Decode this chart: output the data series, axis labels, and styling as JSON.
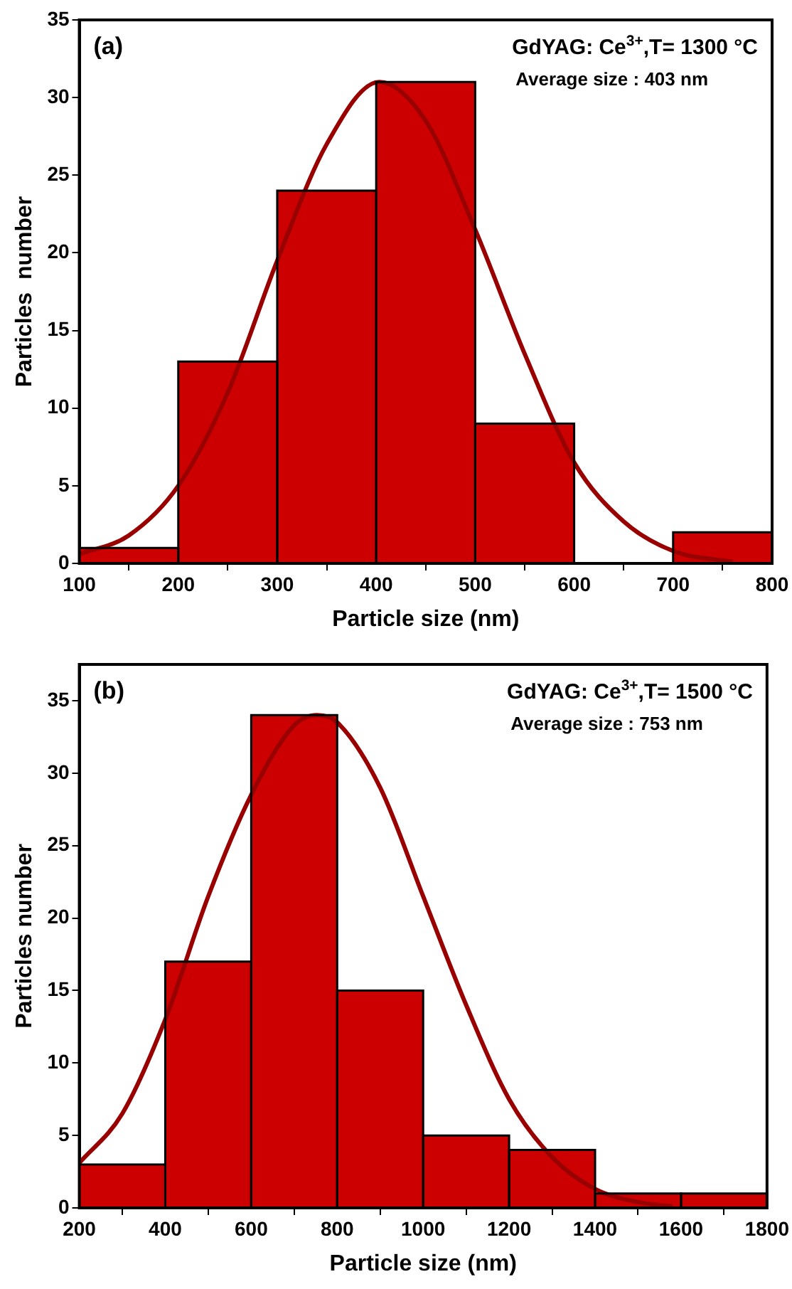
{
  "chart_data": [
    {
      "type": "histogram",
      "xlabel": "Particle size (nm)",
      "ylabel": "Particles  number",
      "bins": [
        100,
        200,
        300,
        400,
        500,
        600,
        700,
        800
      ],
      "values": [
        1,
        13,
        24,
        31,
        9,
        0,
        2
      ],
      "color": "#cc0000",
      "xlim": [
        100,
        800
      ],
      "xticks": [
        100,
        200,
        300,
        400,
        500,
        600,
        700,
        800
      ],
      "ylim": [
        0,
        35
      ],
      "yticks": [
        0,
        5,
        10,
        15,
        20,
        25,
        30,
        35
      ],
      "grid": false,
      "annotations": [
        "(a)",
        "GdYAG: Ce$^{3+}$,T= 1300 °C",
        "Average size : 403 nm"
      ],
      "series": [
        {
          "type": "line",
          "color": "#990000",
          "x": [
            100,
            150,
            200,
            250,
            300,
            350,
            403,
            450,
            500,
            550,
            600,
            650,
            700,
            760
          ],
          "values": [
            0.6,
            1.8,
            5,
            11,
            19.5,
            27,
            31,
            28.5,
            21.5,
            13.5,
            6.5,
            2.7,
            0.8,
            0.1
          ]
        }
      ]
    },
    {
      "type": "histogram",
      "xlabel": "Particle size (nm)",
      "ylabel": "Particles number",
      "bins": [
        200,
        400,
        600,
        800,
        1000,
        1200,
        1400,
        1600,
        1800
      ],
      "values": [
        3,
        17,
        34,
        15,
        5,
        4,
        1,
        1
      ],
      "color": "#cc0000",
      "xlim": [
        200,
        1800
      ],
      "xticks": [
        200,
        400,
        600,
        800,
        1000,
        1200,
        1400,
        1600,
        1800
      ],
      "ylim": [
        0,
        37.5
      ],
      "yticks": [
        0,
        5,
        10,
        15,
        20,
        25,
        30,
        35
      ],
      "grid": false,
      "annotations": [
        "(b)",
        "GdYAG: Ce$^{3+}$,T= 1500 °C",
        "Average size : 753 nm"
      ],
      "series": [
        {
          "type": "line",
          "color": "#990000",
          "x": [
            200,
            300,
            400,
            500,
            600,
            700,
            753,
            800,
            900,
            1000,
            1100,
            1200,
            1300,
            1400,
            1500,
            1580
          ],
          "values": [
            3.1,
            6.5,
            13,
            21.5,
            28.5,
            33.3,
            34,
            33.5,
            29,
            21.5,
            14,
            7.5,
            3.5,
            1.3,
            0.4,
            0.1
          ]
        }
      ]
    }
  ]
}
